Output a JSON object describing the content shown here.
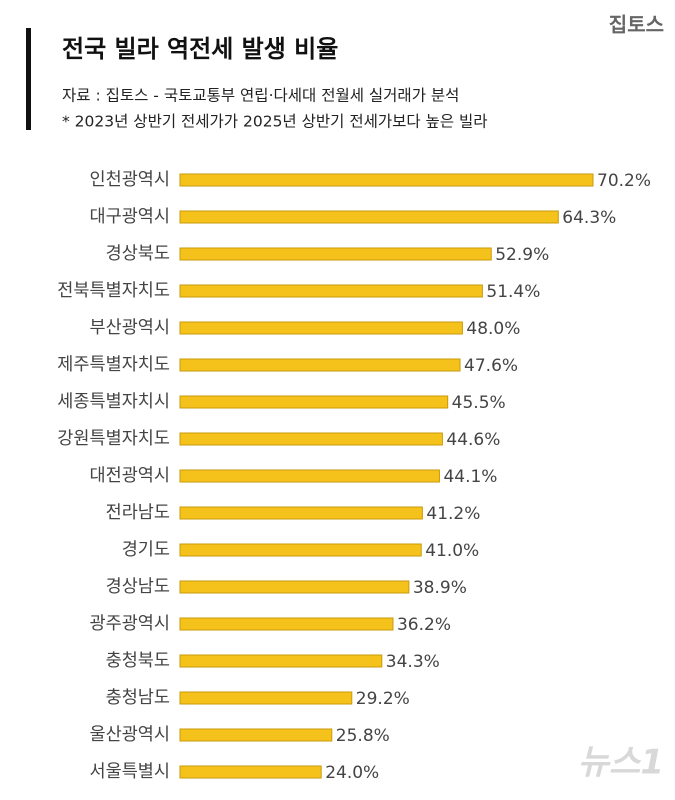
{
  "chart_data": {
    "type": "bar",
    "orientation": "horizontal",
    "logo": "집토스",
    "title": "전국 빌라 역전세 발생 비율",
    "subtitle": [
      "자료 : 집토스 - 국토교통부 연립·다세대 전월세 실거래가 분석",
      "* 2023년 상반기 전세가가 2025년 상반기 전세가보다 높은 빌라"
    ],
    "watermark": "뉴스1",
    "color": "#f5c21b",
    "categories": [
      "인천광역시",
      "대구광역시",
      "경상북도",
      "전북특별자치도",
      "부산광역시",
      "제주특별자치도",
      "세종특별자치시",
      "강원특별자치도",
      "대전광역시",
      "전라남도",
      "경기도",
      "경상남도",
      "광주광역시",
      "충청북도",
      "충청남도",
      "울산광역시",
      "서울특별시"
    ],
    "values": [
      70.2,
      64.3,
      52.9,
      51.4,
      48.0,
      47.6,
      45.5,
      44.6,
      44.1,
      41.2,
      41.0,
      38.9,
      36.2,
      34.3,
      29.2,
      25.8,
      24.0
    ],
    "value_labels": [
      "70.2%",
      "64.3%",
      "52.9%",
      "51.4%",
      "48.0%",
      "47.6%",
      "45.5%",
      "44.6%",
      "44.1%",
      "41.2%",
      "41.0%",
      "38.9%",
      "36.2%",
      "34.3%",
      "29.2%",
      "25.8%",
      "24.0%"
    ]
  }
}
